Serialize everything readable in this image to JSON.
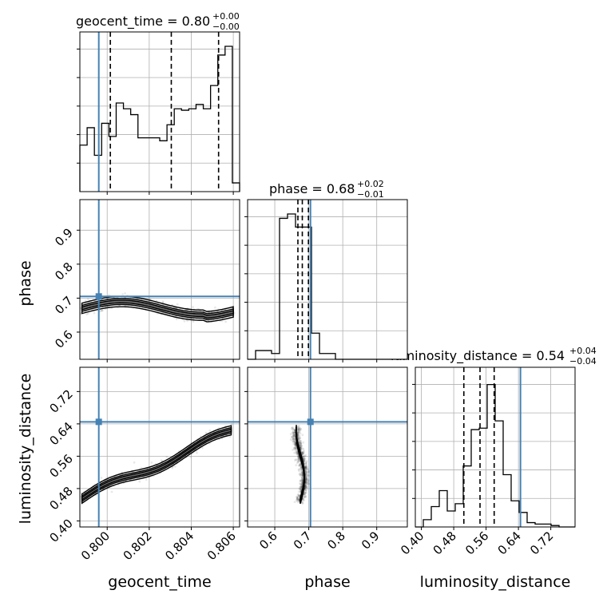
{
  "chart_data": {
    "type": "scatter",
    "kind": "corner-plot",
    "parameters": [
      "geocent_time",
      "phase",
      "luminosity_distance"
    ],
    "grid": true,
    "colors": {
      "truth": "#4682b4",
      "hist": "#000000",
      "grid": "#b0b0b0",
      "points": "#000000"
    },
    "truth": {
      "geocent_time": 0.7996,
      "phase": 0.705,
      "luminosity_distance": 0.645
    },
    "titles": [
      {
        "name": "geocent_time",
        "median": "0.80",
        "plus": "+0.00",
        "minus": "−0.00"
      },
      {
        "name": "phase",
        "median": "0.68",
        "plus": "+0.02",
        "minus": "−0.01"
      },
      {
        "name": "luminosity_distance",
        "median": "0.54",
        "plus": "+0.04",
        "minus": "−0.04"
      }
    ],
    "axes": {
      "geocent_time": {
        "range": [
          0.7987,
          0.8063
        ],
        "ticks": [
          0.8,
          0.802,
          0.804,
          0.806
        ],
        "tick_labels": [
          "0.800",
          "0.802",
          "0.804",
          "0.806"
        ],
        "label": "geocent_time"
      },
      "phase": {
        "range": [
          0.52,
          0.99
        ],
        "ticks": [
          0.6,
          0.7,
          0.8,
          0.9
        ],
        "tick_labels": [
          "0.6",
          "0.7",
          "0.8",
          "0.9"
        ],
        "label": "phase"
      },
      "luminosity_distance": {
        "range": [
          0.385,
          0.78
        ],
        "ticks": [
          0.4,
          0.48,
          0.56,
          0.64,
          0.72
        ],
        "tick_labels": [
          "0.40",
          "0.48",
          "0.56",
          "0.64",
          "0.72"
        ],
        "label": "luminosity_distance"
      }
    },
    "marginals": {
      "geocent_time": {
        "bins": [
          0.7987,
          0.8063
        ],
        "counts": [
          0.32,
          0.44,
          0.25,
          0.47,
          0.38,
          0.61,
          0.57,
          0.53,
          0.37,
          0.37,
          0.37,
          0.35,
          0.46,
          0.57,
          0.56,
          0.57,
          0.6,
          0.57,
          0.73,
          0.94,
          1.0,
          0.06
        ],
        "quantiles": [
          0.80015,
          0.80305,
          0.8053
        ]
      },
      "phase": {
        "bins": [
          0.52,
          0.99
        ],
        "counts": [
          0,
          0.06,
          0.06,
          0.04,
          0.97,
          1.0,
          0.91,
          0.91,
          0.18,
          0.04,
          0.04,
          0,
          0,
          0,
          0,
          0,
          0,
          0,
          0,
          0
        ],
        "quantiles": [
          0.668,
          0.681,
          0.699
        ]
      },
      "luminosity_distance": {
        "bins": [
          0.385,
          0.78
        ],
        "counts": [
          0,
          0.05,
          0.14,
          0.25,
          0.11,
          0.16,
          0.42,
          0.67,
          0.68,
          0.98,
          0.73,
          0.36,
          0.18,
          0.1,
          0.03,
          0.02,
          0.02,
          0.01,
          0,
          0
        ],
        "quantiles": [
          0.505,
          0.545,
          0.58
        ]
      }
    }
  }
}
